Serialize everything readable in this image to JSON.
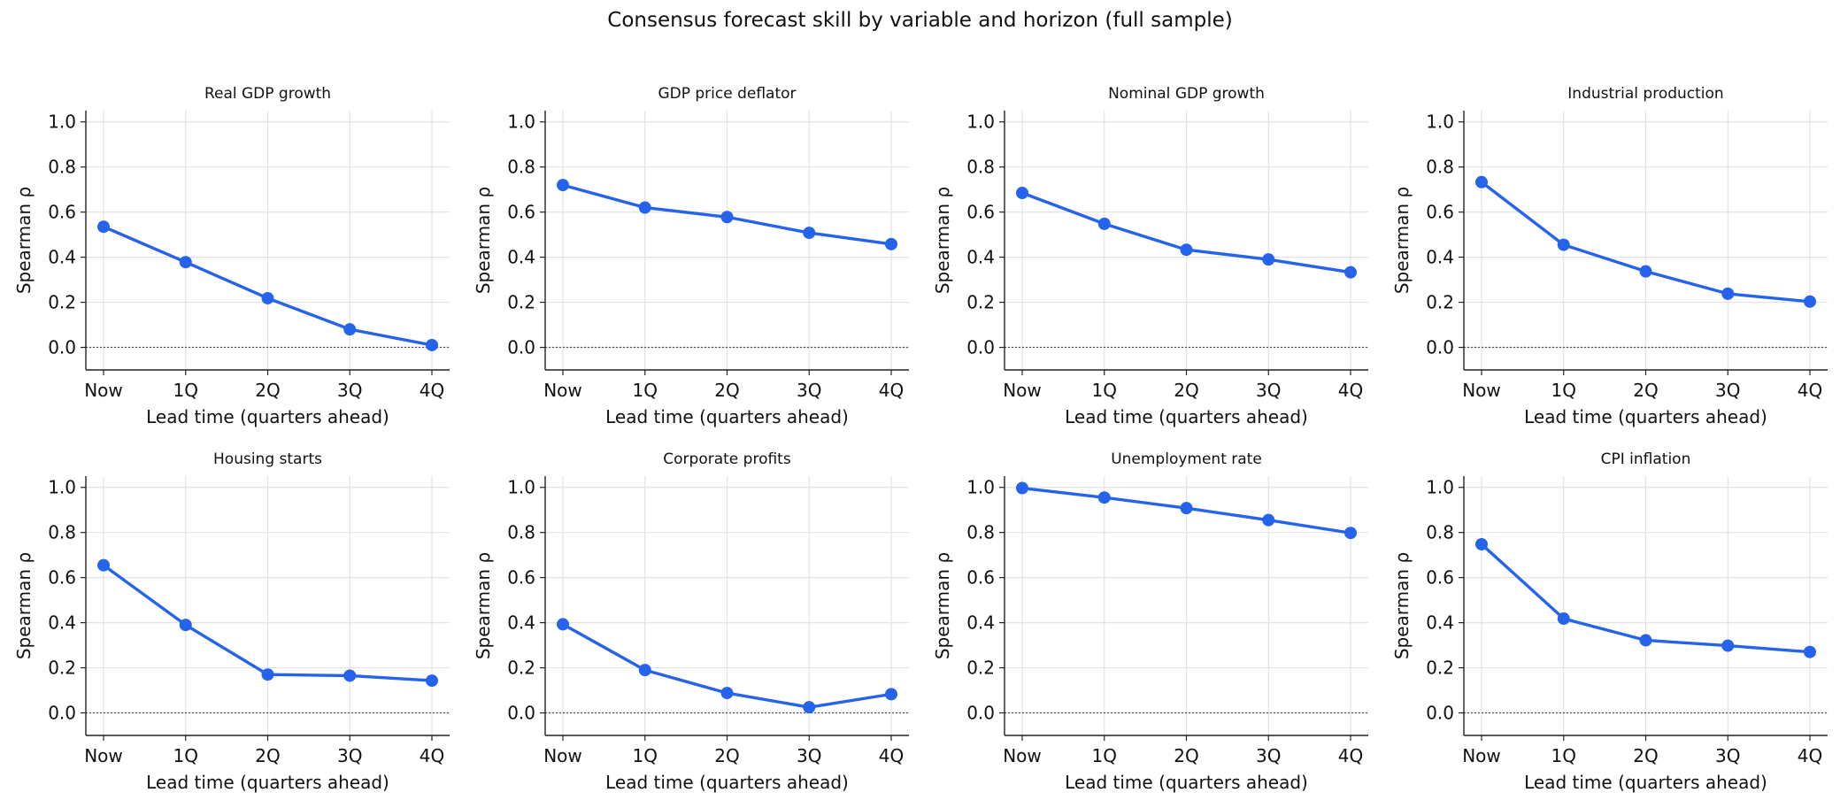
{
  "figure": {
    "suptitle": "Consensus forecast skill by variable and horizon (full sample)"
  },
  "colors": {
    "series": "#2563eb",
    "grid": "#e3e3e3",
    "axis": "#222222",
    "zero_line": "#555555"
  },
  "chart_data": [
    {
      "type": "line",
      "title": "Real GDP growth",
      "xlabel": "Lead time (quarters ahead)",
      "ylabel": "Spearman ρ",
      "categories": [
        "Now",
        "1Q",
        "2Q",
        "3Q",
        "4Q"
      ],
      "values": [
        0.535,
        0.378,
        0.218,
        0.08,
        0.01
      ],
      "ylim": [
        -0.1,
        1.05
      ],
      "yticks": [
        "0.0",
        "0.2",
        "0.4",
        "0.6",
        "0.8",
        "1.0"
      ],
      "grid": true,
      "reference_line": 0
    },
    {
      "type": "line",
      "title": "GDP price deflator",
      "xlabel": "Lead time (quarters ahead)",
      "ylabel": "Spearman ρ",
      "categories": [
        "Now",
        "1Q",
        "2Q",
        "3Q",
        "4Q"
      ],
      "values": [
        0.72,
        0.62,
        0.578,
        0.508,
        0.458
      ],
      "ylim": [
        -0.1,
        1.05
      ],
      "yticks": [
        "0.0",
        "0.2",
        "0.4",
        "0.6",
        "0.8",
        "1.0"
      ],
      "grid": true,
      "reference_line": 0
    },
    {
      "type": "line",
      "title": "Nominal GDP growth",
      "xlabel": "Lead time (quarters ahead)",
      "ylabel": "Spearman ρ",
      "categories": [
        "Now",
        "1Q",
        "2Q",
        "3Q",
        "4Q"
      ],
      "values": [
        0.685,
        0.548,
        0.433,
        0.39,
        0.333
      ],
      "ylim": [
        -0.1,
        1.05
      ],
      "yticks": [
        "0.0",
        "0.2",
        "0.4",
        "0.6",
        "0.8",
        "1.0"
      ],
      "grid": true,
      "reference_line": 0
    },
    {
      "type": "line",
      "title": "Industrial production",
      "xlabel": "Lead time (quarters ahead)",
      "ylabel": "Spearman ρ",
      "categories": [
        "Now",
        "1Q",
        "2Q",
        "3Q",
        "4Q"
      ],
      "values": [
        0.733,
        0.455,
        0.337,
        0.238,
        0.203
      ],
      "ylim": [
        -0.1,
        1.05
      ],
      "yticks": [
        "0.0",
        "0.2",
        "0.4",
        "0.6",
        "0.8",
        "1.0"
      ],
      "grid": true,
      "reference_line": 0
    },
    {
      "type": "line",
      "title": "Housing starts",
      "xlabel": "Lead time (quarters ahead)",
      "ylabel": "Spearman ρ",
      "categories": [
        "Now",
        "1Q",
        "2Q",
        "3Q",
        "4Q"
      ],
      "values": [
        0.655,
        0.39,
        0.17,
        0.165,
        0.143
      ],
      "ylim": [
        -0.1,
        1.05
      ],
      "yticks": [
        "0.0",
        "0.2",
        "0.4",
        "0.6",
        "0.8",
        "1.0"
      ],
      "grid": true,
      "reference_line": 0
    },
    {
      "type": "line",
      "title": "Corporate profits",
      "xlabel": "Lead time (quarters ahead)",
      "ylabel": "Spearman ρ",
      "categories": [
        "Now",
        "1Q",
        "2Q",
        "3Q",
        "4Q"
      ],
      "values": [
        0.393,
        0.19,
        0.088,
        0.025,
        0.083
      ],
      "ylim": [
        -0.1,
        1.05
      ],
      "yticks": [
        "0.0",
        "0.2",
        "0.4",
        "0.6",
        "0.8",
        "1.0"
      ],
      "grid": true,
      "reference_line": 0
    },
    {
      "type": "line",
      "title": "Unemployment rate",
      "xlabel": "Lead time (quarters ahead)",
      "ylabel": "Spearman ρ",
      "categories": [
        "Now",
        "1Q",
        "2Q",
        "3Q",
        "4Q"
      ],
      "values": [
        0.997,
        0.955,
        0.908,
        0.855,
        0.798
      ],
      "ylim": [
        -0.1,
        1.05
      ],
      "yticks": [
        "0.0",
        "0.2",
        "0.4",
        "0.6",
        "0.8",
        "1.0"
      ],
      "grid": true,
      "reference_line": 0
    },
    {
      "type": "line",
      "title": "CPI inflation",
      "xlabel": "Lead time (quarters ahead)",
      "ylabel": "Spearman ρ",
      "categories": [
        "Now",
        "1Q",
        "2Q",
        "3Q",
        "4Q"
      ],
      "values": [
        0.748,
        0.418,
        0.322,
        0.298,
        0.27
      ],
      "ylim": [
        -0.1,
        1.05
      ],
      "yticks": [
        "0.0",
        "0.2",
        "0.4",
        "0.6",
        "0.8",
        "1.0"
      ],
      "grid": true,
      "reference_line": 0
    }
  ]
}
